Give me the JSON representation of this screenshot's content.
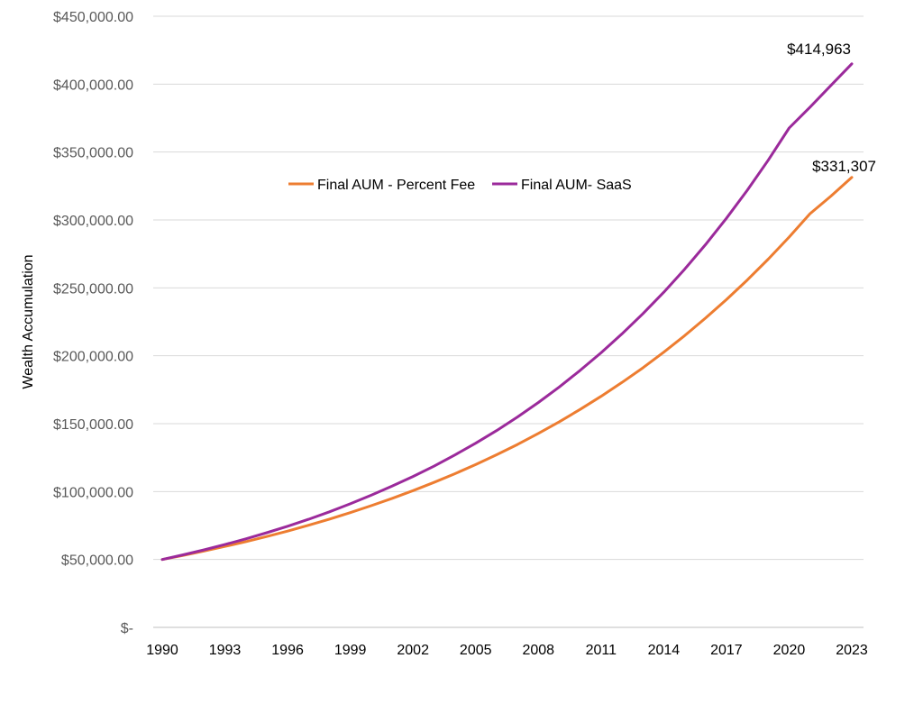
{
  "chart_data": {
    "type": "line",
    "title": "",
    "xlabel": "",
    "ylabel": "Wealth Accumulation",
    "ylim": [
      0,
      450000
    ],
    "y_ticks": [
      0,
      50000,
      100000,
      150000,
      200000,
      250000,
      300000,
      350000,
      400000,
      450000
    ],
    "y_tick_labels": [
      "$-",
      "$50,000.00",
      "$100,000.00",
      "$150,000.00",
      "$200,000.00",
      "$250,000.00",
      "$300,000.00",
      "$350,000.00",
      "$400,000.00",
      "$450,000.00"
    ],
    "x_tick_labels": [
      "1990",
      "1993",
      "1996",
      "1999",
      "2002",
      "2005",
      "2008",
      "2011",
      "2014",
      "2017",
      "2020",
      "2023"
    ],
    "x": [
      1990,
      1991,
      1992,
      1993,
      1994,
      1995,
      1996,
      1997,
      1998,
      1999,
      2000,
      2001,
      2002,
      2003,
      2004,
      2005,
      2006,
      2007,
      2008,
      2009,
      2010,
      2011,
      2012,
      2013,
      2014,
      2015,
      2016,
      2017,
      2018,
      2019,
      2020,
      2021,
      2022,
      2023
    ],
    "grid": true,
    "legend_position": "upper-center",
    "series": [
      {
        "name": "Final AUM - Percent Fee",
        "color": "#ED7D31",
        "values": [
          50000,
          53000,
          56200,
          59600,
          63100,
          66900,
          70900,
          75200,
          79700,
          84500,
          89600,
          95000,
          100700,
          106700,
          113100,
          119900,
          127100,
          134700,
          142800,
          151400,
          160500,
          170100,
          180300,
          191100,
          202600,
          214800,
          227700,
          241300,
          255800,
          271100,
          287400,
          304600,
          317500,
          331307
        ],
        "end_label": "$331,307"
      },
      {
        "name": "Final AUM- SaaS",
        "color": "#9B2A9B",
        "values": [
          50000,
          53400,
          57100,
          61000,
          65200,
          69700,
          74500,
          79600,
          85100,
          91000,
          97300,
          104000,
          111100,
          118700,
          126900,
          135600,
          144900,
          154900,
          165600,
          177000,
          189200,
          202200,
          216100,
          230900,
          246800,
          263700,
          281800,
          301200,
          321900,
          344000,
          367700,
          383000,
          399000,
          414963
        ],
        "end_label": "$414,963"
      }
    ]
  }
}
